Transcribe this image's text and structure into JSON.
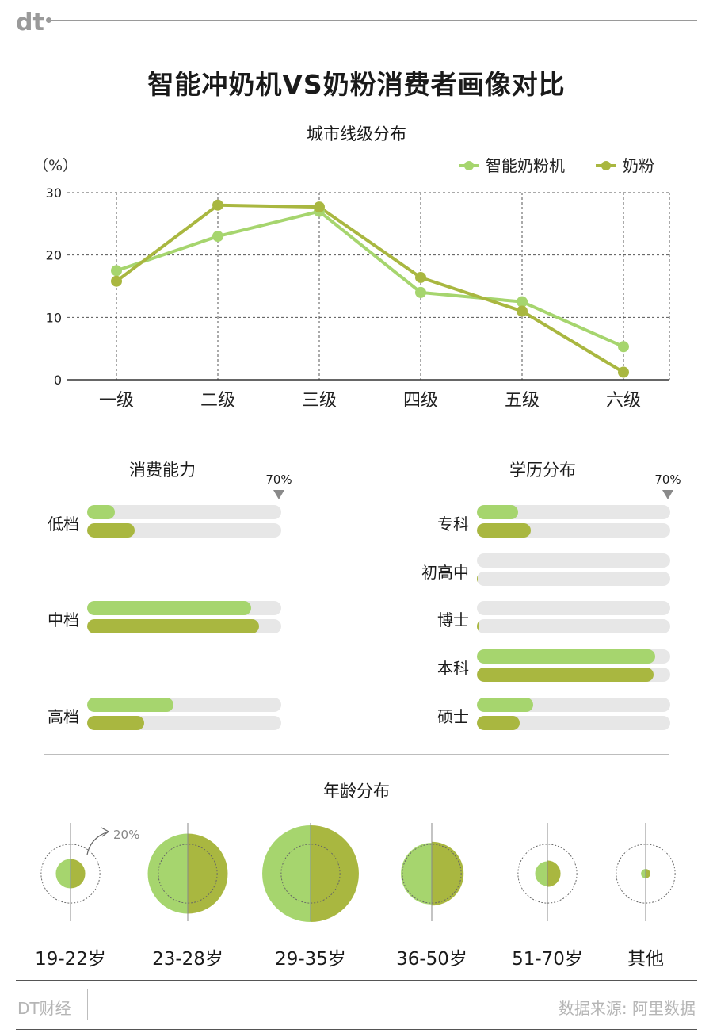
{
  "header": {
    "logo_text": "dt",
    "title": "智能冲奶机VS奶粉消费者画像对比"
  },
  "colors": {
    "series_a": "#a6d56e",
    "series_b": "#a9b740",
    "track": "#e7e7e7",
    "grid": "#555555"
  },
  "chart_data": [
    {
      "type": "line",
      "title": "城市线级分布",
      "unit_label": "（%）",
      "categories": [
        "一级",
        "二级",
        "三级",
        "四级",
        "五级",
        "六级"
      ],
      "ylim": [
        0,
        30
      ],
      "yticks": [
        "0",
        "10",
        "20",
        "30"
      ],
      "grid": true,
      "legend": "top-right",
      "series": [
        {
          "name": "智能奶粉机",
          "values": [
            17.5,
            23,
            27,
            14,
            12.5,
            5.3
          ]
        },
        {
          "name": "奶粉",
          "values": [
            15.8,
            28,
            27.7,
            16.4,
            11,
            1.2
          ]
        }
      ]
    },
    {
      "type": "bar",
      "title": "消费能力",
      "max_label": "70%",
      "max": 70,
      "categories": [
        "低档",
        "中档",
        "高档"
      ],
      "series": [
        {
          "name": "智能奶粉机",
          "values": [
            10,
            59,
            31
          ]
        },
        {
          "name": "奶粉",
          "values": [
            17,
            62,
            20.5
          ]
        }
      ]
    },
    {
      "type": "bar",
      "title": "学历分布",
      "max_label": "70%",
      "max": 70,
      "categories": [
        "专科",
        "初高中",
        "博士",
        "本科",
        "硕士"
      ],
      "series": [
        {
          "name": "智能奶粉机",
          "values": [
            15,
            0,
            0,
            64.5,
            20.5
          ]
        },
        {
          "name": "奶粉",
          "values": [
            19.5,
            0.3,
            0.5,
            64,
            15.5
          ]
        }
      ]
    },
    {
      "type": "scatter",
      "title": "年龄分布",
      "reference_label": "20%",
      "reference": 20,
      "categories": [
        "19-22岁",
        "23-28岁",
        "29-35岁",
        "36-50岁",
        "51-70岁",
        "其他"
      ],
      "series": [
        {
          "name": "智能奶粉机",
          "values": [
            5,
            37,
            54,
            22,
            3.5,
            0.5
          ]
        },
        {
          "name": "奶粉",
          "values": [
            5,
            37,
            54,
            23.5,
            4,
            0.5
          ]
        }
      ]
    }
  ],
  "footer": {
    "brand": "DT财经",
    "source": "数据来源: 阿里数据"
  }
}
